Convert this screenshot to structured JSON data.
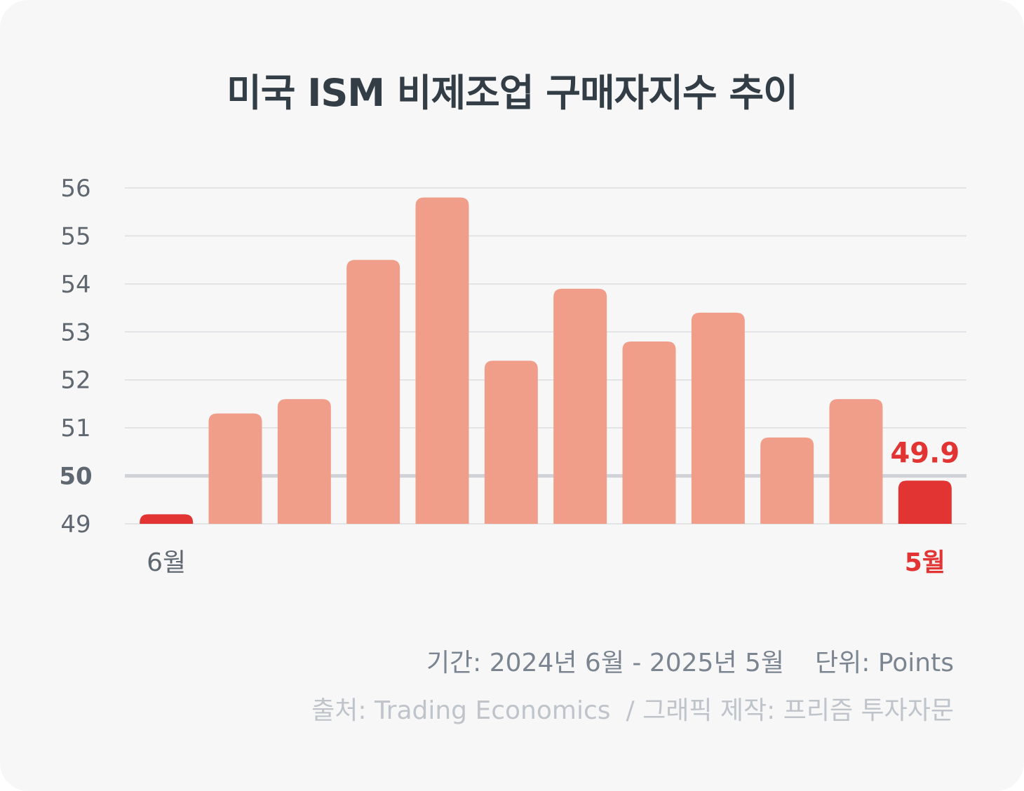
{
  "title": "미국 ISM 비제조업 구매자지수 추이",
  "chart_data": {
    "type": "bar",
    "categories": [
      "6월",
      "",
      "",
      "",
      "",
      "",
      "",
      "",
      "",
      "",
      "",
      "5월"
    ],
    "values": [
      49.2,
      51.3,
      51.6,
      54.5,
      55.8,
      52.4,
      53.9,
      52.8,
      53.4,
      50.8,
      51.6,
      49.9
    ],
    "ylim": [
      49,
      56
    ],
    "yticks": [
      49,
      50,
      51,
      52,
      53,
      54,
      55,
      56
    ],
    "reference_line": 50,
    "highlight_label": "49.9",
    "grid": true,
    "legend": "none"
  },
  "footer": {
    "period": "기간: 2024년 6월 - 2025년 5월",
    "unit": "단위: Points",
    "source": "출처: Trading Economics",
    "credit": "/ 그래픽 제작: 프리즘 투자자문"
  },
  "colors": {
    "bar": "#f09e8a",
    "bar_below_50": "#e33434",
    "highlight_text": "#e33434",
    "grid": "#dcdde0",
    "reference": "#d0d2d8",
    "tick": "#5f6771",
    "title": "#333d45"
  }
}
